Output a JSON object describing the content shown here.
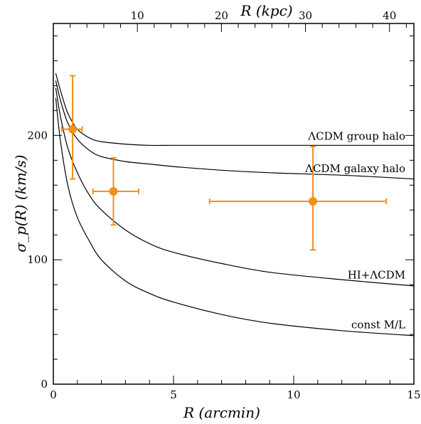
{
  "chart_data": {
    "type": "line",
    "title": "",
    "xlabel": "R (arcmin)",
    "ylabel": "σ_p(R) (km/s)",
    "xlabel_top": "R (kpc)",
    "xlim": [
      0,
      15
    ],
    "ylim": [
      0,
      290
    ],
    "x_ticks": [
      0,
      5,
      10,
      15
    ],
    "y_ticks": [
      0,
      100,
      200
    ],
    "top_ticks_kpc": [
      10,
      20,
      30,
      40
    ],
    "kpc_per_arcmin": 2.86,
    "series": [
      {
        "name": "ΛCDM group halo",
        "x": [
          0.1,
          0.3,
          0.6,
          1.0,
          1.5,
          2.0,
          3.0,
          4.0,
          5.0,
          7.0,
          9.0,
          12.0,
          15.0
        ],
        "y": [
          250,
          236,
          218,
          205,
          198,
          195,
          193,
          192,
          192,
          192,
          192,
          192,
          192
        ]
      },
      {
        "name": "ΛCDM galaxy halo",
        "x": [
          0.1,
          0.3,
          0.6,
          1.0,
          1.5,
          2.0,
          3.0,
          4.0,
          5.0,
          7.0,
          9.0,
          12.0,
          15.0
        ],
        "y": [
          244,
          228,
          210,
          197,
          188,
          183,
          179,
          177,
          175,
          172,
          170,
          168,
          165
        ]
      },
      {
        "name": "HI+ΛCDM",
        "x": [
          0.1,
          0.3,
          0.6,
          1.0,
          1.5,
          2.0,
          3.0,
          4.0,
          5.0,
          7.0,
          9.0,
          12.0,
          15.0
        ],
        "y": [
          238,
          215,
          190,
          170,
          152,
          140,
          124,
          113,
          106,
          97,
          90,
          84,
          79
        ]
      },
      {
        "name": "const M/L",
        "x": [
          0.1,
          0.3,
          0.6,
          1.0,
          1.5,
          2.0,
          3.0,
          4.0,
          5.0,
          7.0,
          9.0,
          12.0,
          15.0
        ],
        "y": [
          230,
          195,
          160,
          134,
          115,
          100,
          83,
          73,
          66,
          56,
          49,
          43,
          39
        ]
      }
    ],
    "data_points": [
      {
        "x": 0.8,
        "y": 205,
        "xerr": [
          0.45,
          0.4
        ],
        "yerr": [
          40,
          43
        ]
      },
      {
        "x": 2.5,
        "y": 155,
        "xerr": [
          0.85,
          1.05
        ],
        "yerr": [
          27,
          27
        ]
      },
      {
        "x": 10.8,
        "y": 147,
        "xerr": [
          4.3,
          3.05
        ],
        "yerr": [
          39,
          44
        ]
      }
    ],
    "point_color": "#f39019",
    "curve_color": "#000000",
    "grid": false,
    "legend": "none"
  }
}
